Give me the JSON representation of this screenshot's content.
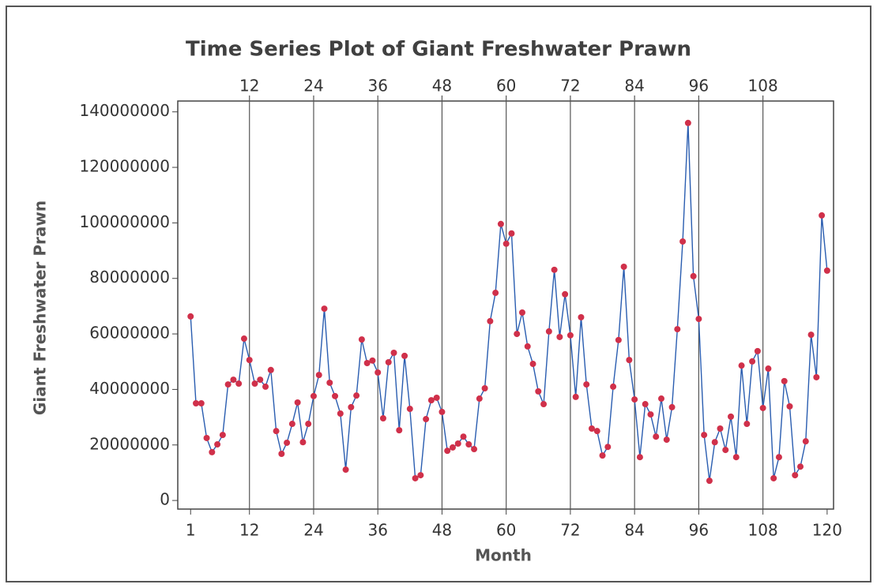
{
  "chart_data": {
    "type": "line",
    "title": "Time Series Plot of Giant Freshwater Prawn",
    "x_label": "Month",
    "y_label": "Giant Freshwater Prawn",
    "x": [
      1,
      2,
      3,
      4,
      5,
      6,
      7,
      8,
      9,
      10,
      11,
      12,
      13,
      14,
      15,
      16,
      17,
      18,
      19,
      20,
      21,
      22,
      23,
      24,
      25,
      26,
      27,
      28,
      29,
      30,
      31,
      32,
      33,
      34,
      35,
      36,
      37,
      38,
      39,
      40,
      41,
      42,
      43,
      44,
      45,
      46,
      47,
      48,
      49,
      50,
      51,
      52,
      53,
      54,
      55,
      56,
      57,
      58,
      59,
      60,
      61,
      62,
      63,
      64,
      65,
      66,
      67,
      68,
      69,
      70,
      71,
      72,
      73,
      74,
      75,
      76,
      77,
      78,
      79,
      80,
      81,
      82,
      83,
      84,
      85,
      86,
      87,
      88,
      89,
      90,
      91,
      92,
      93,
      94,
      95,
      96,
      97,
      98,
      99,
      100,
      101,
      102,
      103,
      104,
      105,
      106,
      107,
      108,
      109,
      110,
      111,
      112,
      113,
      114,
      115,
      116,
      117,
      118,
      119,
      120
    ],
    "series": [
      {
        "name": "Giant Freshwater Prawn",
        "color": "#2a5db0",
        "marker_color": "#d0304a",
        "values": [
          66300000,
          35000000,
          35000000,
          22500000,
          17400000,
          20200000,
          23600000,
          41800000,
          43500000,
          42100000,
          58300000,
          50600000,
          42100000,
          43500000,
          41000000,
          47000000,
          25000000,
          16800000,
          20800000,
          27600000,
          35300000,
          21000000,
          27600000,
          37600000,
          45200000,
          69100000,
          42400000,
          37600000,
          31300000,
          11100000,
          33600000,
          37800000,
          58000000,
          49500000,
          50400000,
          46100000,
          29600000,
          49800000,
          53200000,
          25300000,
          52100000,
          33000000,
          8000000,
          9100000,
          29300000,
          36100000,
          37000000,
          31900000,
          17900000,
          19100000,
          20500000,
          23000000,
          20200000,
          18500000,
          36700000,
          40400000,
          64600000,
          74800000,
          99600000,
          92500000,
          96200000,
          60000000,
          67700000,
          55500000,
          49200000,
          39300000,
          34700000,
          60900000,
          83100000,
          58900000,
          74300000,
          59500000,
          37300000,
          66000000,
          41800000,
          25900000,
          25000000,
          16200000,
          19300000,
          41000000,
          57800000,
          84200000,
          50600000,
          36400000,
          15600000,
          34700000,
          31000000,
          23000000,
          36700000,
          21900000,
          33600000,
          61700000,
          93300000,
          136000000,
          80800000,
          65400000,
          23600000,
          7100000,
          21000000,
          25900000,
          18200000,
          30200000,
          15600000,
          48600000,
          27600000,
          50100000,
          53800000,
          33300000,
          47500000,
          8000000,
          15600000,
          43000000,
          33900000,
          9100000,
          12200000,
          21300000,
          59700000,
          44400000,
          102700000,
          82800000
        ]
      }
    ],
    "xlim": [
      -1.4,
      121.2
    ],
    "ylim": [
      -3100000,
      143900000
    ],
    "xticks": [
      1,
      12,
      24,
      36,
      48,
      60,
      72,
      84,
      96,
      108,
      120
    ],
    "top_ticks": [
      12,
      24,
      36,
      48,
      60,
      72,
      84,
      96,
      108
    ],
    "yticks": [
      0,
      20000000,
      40000000,
      60000000,
      80000000,
      100000000,
      120000000,
      140000000
    ]
  }
}
